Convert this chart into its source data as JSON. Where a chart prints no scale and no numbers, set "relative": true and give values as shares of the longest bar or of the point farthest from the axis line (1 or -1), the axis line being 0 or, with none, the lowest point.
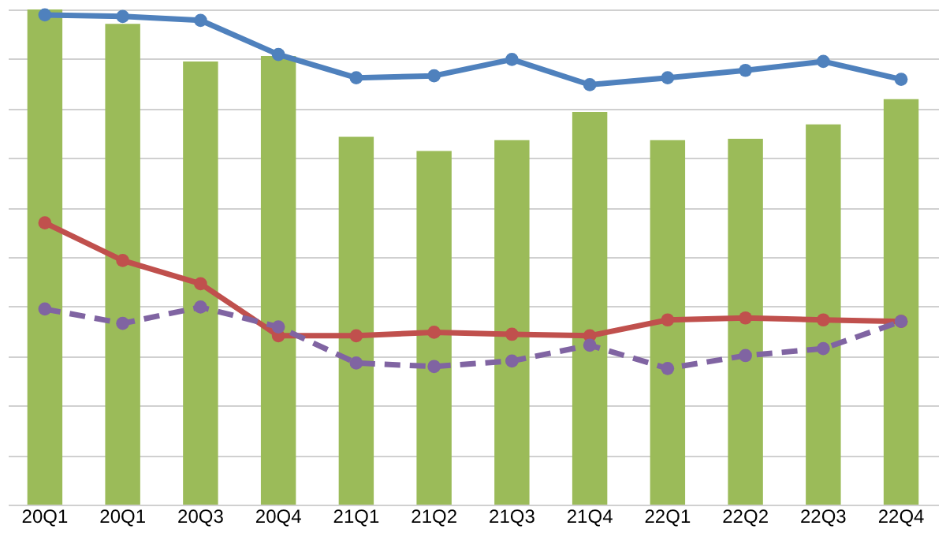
{
  "chart_data": {
    "type": "bar",
    "relative": true,
    "grid": "y",
    "tick_labels": "x",
    "marker": "circle",
    "categories": [
      "20Q1",
      "20Q1",
      "20Q3",
      "20Q4",
      "21Q1",
      "21Q2",
      "21Q3",
      "21Q4",
      "22Q1",
      "22Q2",
      "22Q3",
      "22Q4"
    ],
    "series": [
      {
        "color": "#9bbb59",
        "values": [
          1,
          0.971,
          0.895,
          0.906,
          0.743,
          0.714,
          0.736,
          0.793,
          0.736,
          0.739,
          0.768,
          0.819
        ]
      },
      {
        "type": "line",
        "color": "#4f81bd",
        "line_style": "solid",
        "values": [
          0.989,
          0.986,
          0.978,
          0.909,
          0.862,
          0.866,
          0.899,
          0.848,
          0.862,
          0.877,
          0.895,
          0.859
        ]
      },
      {
        "type": "line",
        "color": "#c0504d",
        "line_style": "solid",
        "values": [
          0.569,
          0.493,
          0.446,
          0.341,
          0.341,
          0.348,
          0.344,
          0.341,
          0.373,
          0.377,
          0.373,
          0.37
        ]
      },
      {
        "type": "line",
        "color": "#8064a2",
        "line_style": "dashed",
        "values": [
          0.395,
          0.366,
          0.399,
          0.359,
          0.286,
          0.279,
          0.29,
          0.322,
          0.275,
          0.301,
          0.315,
          0.37
        ]
      }
    ]
  }
}
